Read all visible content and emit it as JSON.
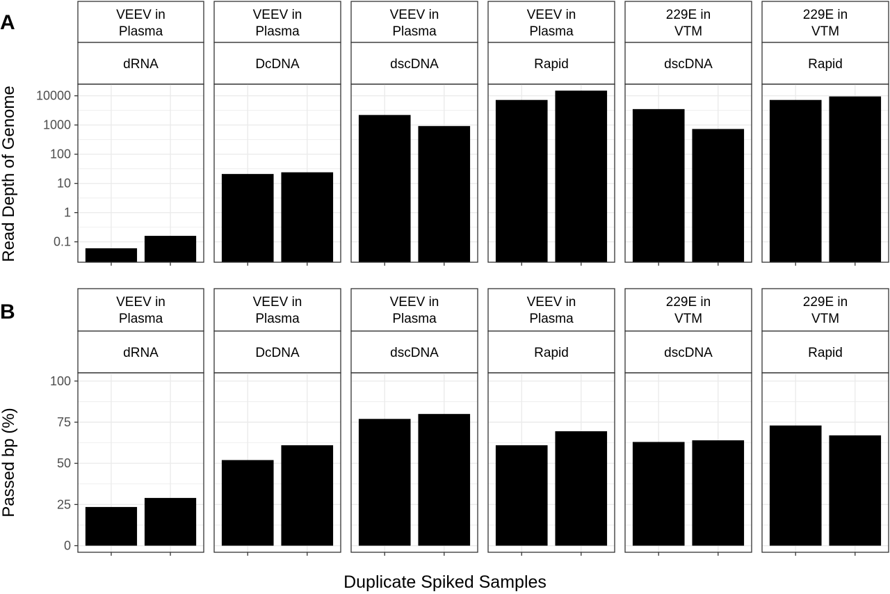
{
  "figure": {
    "xlabel": "Duplicate Spiked Samples"
  },
  "chart_data": [
    {
      "panel_label": "A",
      "type": "bar",
      "ylabel": "Read Depth of Genome",
      "y_scale": "log10",
      "ylim": [
        0.02,
        25000
      ],
      "y_ticks": [
        0.1,
        1,
        10,
        100,
        1000,
        10000
      ],
      "y_tick_labels": [
        "0.1",
        "1",
        "10",
        "100",
        "1000",
        "10000"
      ],
      "grid": true,
      "facets": [
        {
          "strip_top": [
            "VEEV in",
            "Plasma"
          ],
          "strip_bottom": "dRNA",
          "values": [
            0.06,
            0.16
          ]
        },
        {
          "strip_top": [
            "VEEV in",
            "Plasma"
          ],
          "strip_bottom": "DcDNA",
          "values": [
            21,
            24
          ]
        },
        {
          "strip_top": [
            "VEEV in",
            "Plasma"
          ],
          "strip_bottom": "dscDNA",
          "values": [
            2200,
            920
          ]
        },
        {
          "strip_top": [
            "VEEV in",
            "Plasma"
          ],
          "strip_bottom": "Rapid",
          "values": [
            7200,
            15000
          ]
        },
        {
          "strip_top": [
            "229E in",
            "VTM"
          ],
          "strip_bottom": "dscDNA",
          "values": [
            3500,
            730
          ]
        },
        {
          "strip_top": [
            "229E in",
            "VTM"
          ],
          "strip_bottom": "Rapid",
          "values": [
            7200,
            9500
          ]
        }
      ]
    },
    {
      "panel_label": "B",
      "type": "bar",
      "ylabel": "Passed bp (%)",
      "y_scale": "linear",
      "ylim": [
        -4,
        105
      ],
      "y_ticks": [
        0,
        25,
        50,
        75,
        100
      ],
      "y_tick_labels": [
        "0",
        "25",
        "50",
        "75",
        "100"
      ],
      "grid": true,
      "facets": [
        {
          "strip_top": [
            "VEEV in",
            "Plasma"
          ],
          "strip_bottom": "dRNA",
          "values": [
            23.5,
            29
          ]
        },
        {
          "strip_top": [
            "VEEV in",
            "Plasma"
          ],
          "strip_bottom": "DcDNA",
          "values": [
            52,
            61
          ]
        },
        {
          "strip_top": [
            "VEEV in",
            "Plasma"
          ],
          "strip_bottom": "dscDNA",
          "values": [
            77,
            80
          ]
        },
        {
          "strip_top": [
            "VEEV in",
            "Plasma"
          ],
          "strip_bottom": "Rapid",
          "values": [
            61,
            69.5
          ]
        },
        {
          "strip_top": [
            "229E in",
            "VTM"
          ],
          "strip_bottom": "dscDNA",
          "values": [
            63,
            64
          ]
        },
        {
          "strip_top": [
            "229E in",
            "VTM"
          ],
          "strip_bottom": "Rapid",
          "values": [
            73,
            67
          ]
        }
      ]
    }
  ],
  "colors": {
    "bar": "#000000",
    "grid": "#ebebeb",
    "panel_border": "#333333",
    "strip_fill": "#ffffff",
    "text": "#000000",
    "tick_text": "#4d4d4d"
  }
}
